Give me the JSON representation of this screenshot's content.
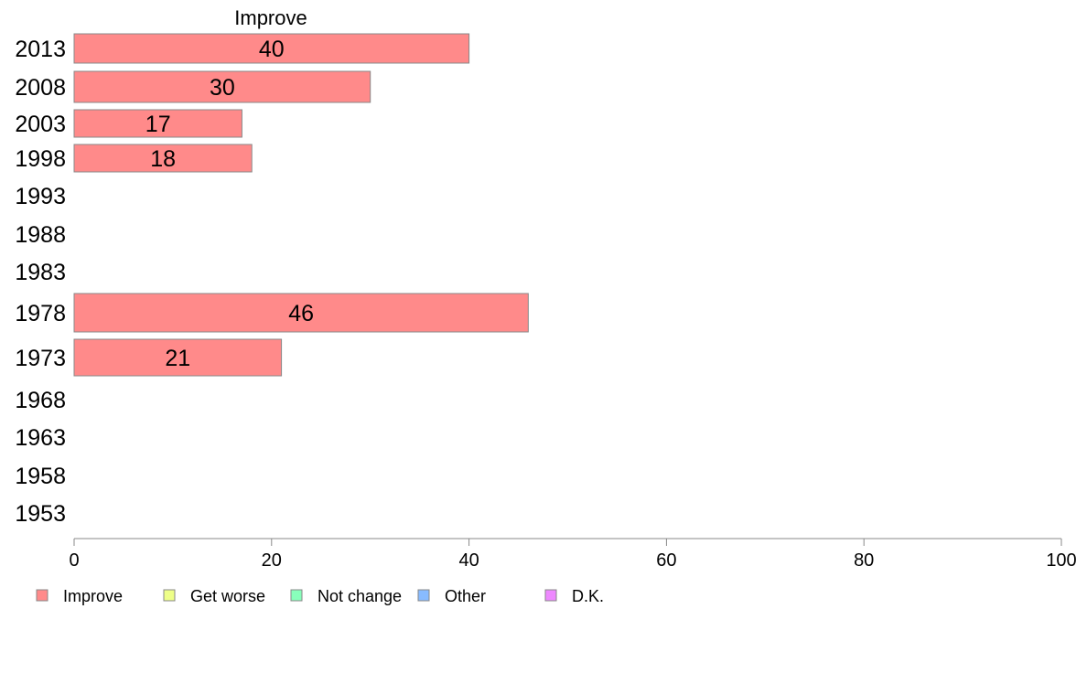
{
  "chart_data": {
    "type": "bar",
    "orientation": "horizontal",
    "title": "Improve",
    "categories": [
      "2013",
      "2008",
      "2003",
      "1998",
      "1993",
      "1988",
      "1983",
      "1978",
      "1973",
      "1968",
      "1963",
      "1958",
      "1953"
    ],
    "series": [
      {
        "name": "Improve",
        "color": "#ff8a8a",
        "values": [
          40,
          30,
          17,
          18,
          null,
          null,
          null,
          46,
          21,
          null,
          null,
          null,
          null
        ]
      }
    ],
    "xlim": [
      0,
      100
    ],
    "xticks": [
      "0",
      "20",
      "40",
      "60",
      "80",
      "100"
    ],
    "grid": false,
    "legend": {
      "position": "bottom-left",
      "items": [
        {
          "label": "Improve",
          "color": "#ff8a8a"
        },
        {
          "label": "Get worse",
          "color": "#eeff88"
        },
        {
          "label": "Not change",
          "color": "#88ffbb"
        },
        {
          "label": "Other",
          "color": "#88bbff"
        },
        {
          "label": "D.K.",
          "color": "#ee88ff"
        }
      ]
    }
  }
}
